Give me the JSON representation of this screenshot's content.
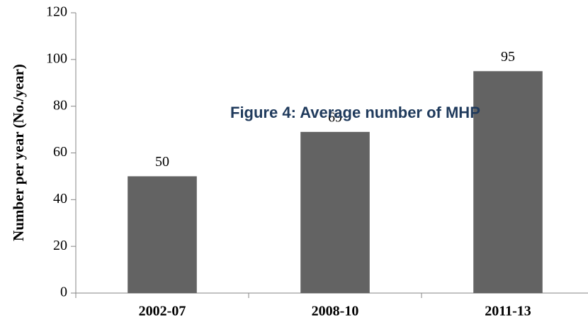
{
  "chart_data": {
    "type": "bar",
    "title": "Figure 4: Average number of MHP",
    "y_label": "Number per year (No./year)",
    "categories": [
      "2002-07",
      "2008-10",
      "2011-13"
    ],
    "values": [
      50,
      69,
      95
    ],
    "color": "#636363",
    "ylim": [
      0,
      120
    ],
    "yticks": [
      0,
      20,
      40,
      60,
      80,
      100,
      120
    ],
    "grid": false
  }
}
